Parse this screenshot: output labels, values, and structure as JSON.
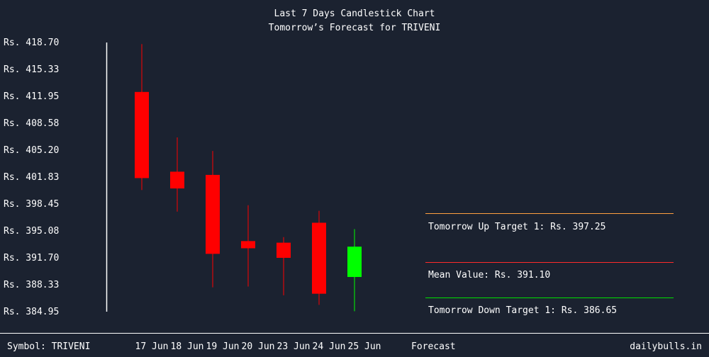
{
  "header": {
    "title": "Last 7 Days Candlestick Chart",
    "subtitle": "Tomorrow’s Forecast for TRIVENI"
  },
  "footer": {
    "symbol_label": "Symbol: TRIVENI",
    "forecast_label": "Forecast",
    "site": "dailybulls.in"
  },
  "colors": {
    "background": "#1b2230",
    "bearish": "#ff0000",
    "bullish": "#00ff00",
    "up_target": "#ff9f40",
    "mean": "#ff2a2a",
    "down_target": "#00e000"
  },
  "targets": {
    "up": "Tomorrow Up Target 1: Rs. 397.25",
    "mean": "Mean Value: Rs. 391.10",
    "down": "Tomorrow Down Target 1: Rs. 386.65"
  },
  "chart_data": {
    "type": "candlestick",
    "title": "Last 7 Days Candlestick Chart",
    "subtitle": "Tomorrow’s Forecast for TRIVENI",
    "ylim": [
      384.95,
      418.7
    ],
    "y_ticks": [
      "Rs. 418.70",
      "Rs. 415.33",
      "Rs. 411.95",
      "Rs. 408.58",
      "Rs. 405.20",
      "Rs. 401.83",
      "Rs. 398.45",
      "Rs. 395.08",
      "Rs. 391.70",
      "Rs. 388.33",
      "Rs. 384.95"
    ],
    "y_tick_values": [
      418.7,
      415.33,
      411.95,
      408.58,
      405.2,
      401.83,
      398.45,
      395.08,
      391.7,
      388.33,
      384.95
    ],
    "categories": [
      "17 Jun",
      "18 Jun",
      "19 Jun",
      "20 Jun",
      "23 Jun",
      "24 Jun",
      "25 Jun"
    ],
    "candles": [
      {
        "date": "17 Jun",
        "open": 412.5,
        "high": 418.5,
        "low": 400.2,
        "close": 401.7
      },
      {
        "date": "18 Jun",
        "open": 402.5,
        "high": 406.8,
        "low": 397.5,
        "close": 400.4
      },
      {
        "date": "19 Jun",
        "open": 402.1,
        "high": 405.1,
        "low": 388.0,
        "close": 392.2
      },
      {
        "date": "20 Jun",
        "open": 393.8,
        "high": 398.3,
        "low": 388.1,
        "close": 392.9
      },
      {
        "date": "23 Jun",
        "open": 393.6,
        "high": 394.3,
        "low": 387.0,
        "close": 391.7
      },
      {
        "date": "24 Jun",
        "open": 396.1,
        "high": 397.6,
        "low": 385.8,
        "close": 387.2
      },
      {
        "date": "25 Jun",
        "open": 389.3,
        "high": 395.3,
        "low": 385.0,
        "close": 393.1
      }
    ],
    "targets": {
      "up": {
        "label": "Tomorrow Up Target 1: Rs. 397.25",
        "value": 397.25
      },
      "mean": {
        "label": "Mean Value: Rs. 391.10",
        "value": 391.1
      },
      "down": {
        "label": "Tomorrow Down Target 1: Rs. 386.65",
        "value": 386.65
      }
    }
  }
}
